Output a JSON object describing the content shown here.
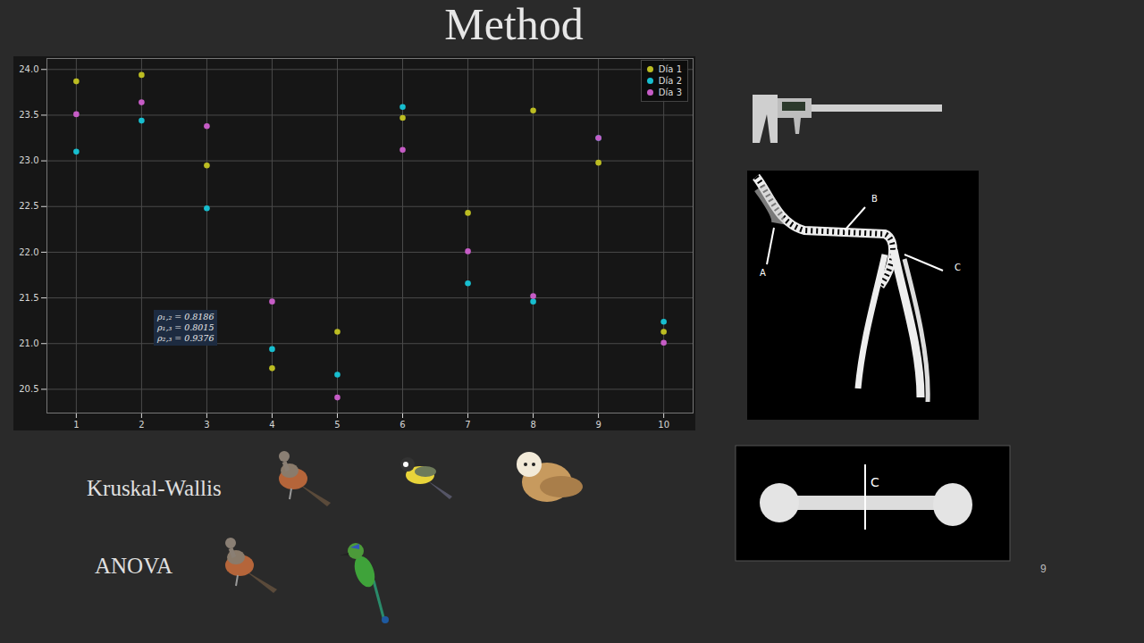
{
  "chart_data": {
    "type": "scatter",
    "x": [
      1,
      2,
      3,
      4,
      5,
      6,
      7,
      8,
      9,
      10
    ],
    "xlim": [
      0.55,
      10.45
    ],
    "xticks": [
      1,
      2,
      3,
      4,
      5,
      6,
      7,
      8,
      9,
      10
    ],
    "ylim": [
      20.24,
      24.12
    ],
    "yticks": [
      20.5,
      {
        "value": 21,
        "label": "21.0"
      },
      21.5,
      {
        "value": 22,
        "label": "22.0"
      },
      22.5,
      {
        "value": 23,
        "label": "23.0"
      },
      23.5,
      {
        "value": 24,
        "label": "24.0"
      }
    ],
    "grid": true,
    "legend": "upper right",
    "series": [
      {
        "name": "Día 1",
        "color": "#bcbd22",
        "values": [
          23.87,
          23.94,
          22.95,
          20.73,
          21.13,
          23.47,
          22.43,
          23.55,
          22.98,
          21.13
        ]
      },
      {
        "name": "Día 2",
        "color": "#17becf",
        "values": [
          23.1,
          23.44,
          22.48,
          20.94,
          20.66,
          23.59,
          21.66,
          21.46,
          23.25,
          21.24
        ]
      },
      {
        "name": "Día 3",
        "color": "#c65cc6",
        "values": [
          23.51,
          23.64,
          23.38,
          21.46,
          20.41,
          23.12,
          22.01,
          21.52,
          23.25,
          21.01
        ]
      }
    ],
    "annotations": [
      "ρ₁,₂ = 0.8186",
      "ρ₁,₃ = 0.8015",
      "ρ₂,₃ = 0.9376"
    ]
  },
  "slide": {
    "title": "Method",
    "tests": [
      "Kruskal-Wallis",
      "ANOVA"
    ],
    "page_number": "9",
    "foot_labels": [
      "A",
      "B",
      "C"
    ],
    "bone_labels": [
      "C"
    ]
  }
}
